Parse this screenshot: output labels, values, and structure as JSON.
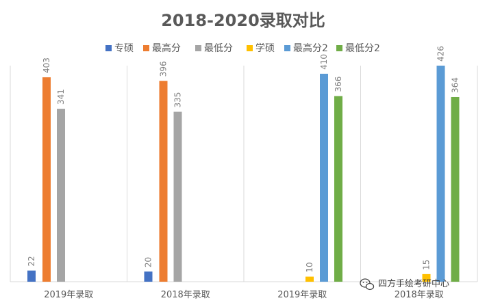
{
  "chart_data": {
    "type": "bar",
    "title": "2018-2020录取对比",
    "categories": [
      "2019年录取",
      "2018年录取",
      "2019年录取",
      "2018年录取"
    ],
    "ylim": [
      0,
      440
    ],
    "grid": false,
    "legend_position": "top",
    "series": [
      {
        "name": "专硕",
        "color": "#4472C4",
        "values": [
          22,
          20,
          null,
          null
        ]
      },
      {
        "name": "最高分",
        "color": "#ED7D31",
        "values": [
          403,
          396,
          null,
          null
        ]
      },
      {
        "name": "最低分",
        "color": "#A5A5A5",
        "values": [
          341,
          335,
          null,
          null
        ]
      },
      {
        "name": "学硕",
        "color": "#FFC000",
        "values": [
          null,
          null,
          10,
          15
        ]
      },
      {
        "name": "最高分2",
        "color": "#5B9BD5",
        "values": [
          null,
          null,
          410,
          426
        ]
      },
      {
        "name": "最低分2",
        "color": "#70AD47",
        "values": [
          null,
          null,
          366,
          364
        ]
      }
    ]
  },
  "watermark": {
    "text": "四方手绘考研中心",
    "icon": "wechat-icon"
  }
}
